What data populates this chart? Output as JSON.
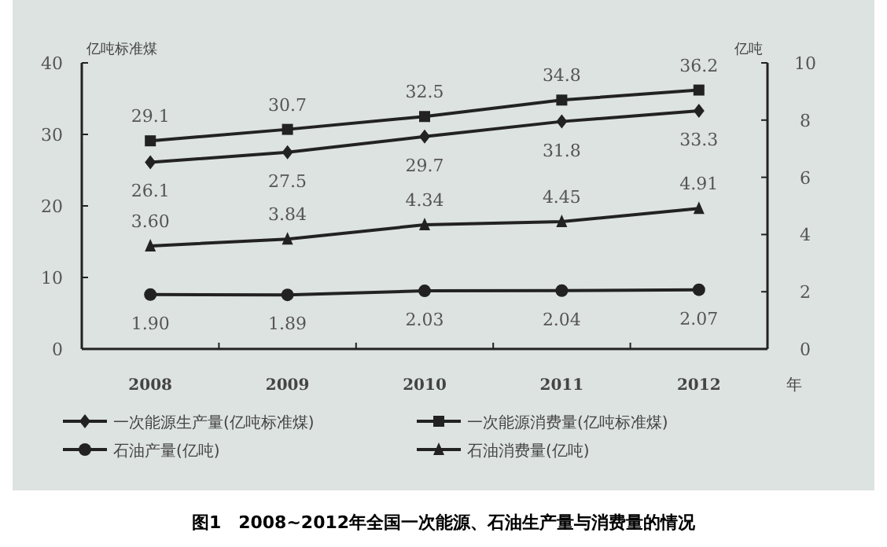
{
  "chart_data": {
    "type": "line",
    "categories": [
      "2008",
      "2009",
      "2010",
      "2011",
      "2012"
    ],
    "xlabel": "年",
    "ylabel": "亿吨标准煤",
    "y2label": "亿吨",
    "ylim": [
      0,
      40
    ],
    "yticks": [
      0,
      10,
      20,
      30,
      40
    ],
    "y2lim": [
      0,
      10
    ],
    "y2ticks": [
      0,
      2,
      4,
      6,
      8,
      10
    ],
    "series": [
      {
        "name": "一次能源生产量(亿吨标准煤)",
        "color": "#222222",
        "marker": "diamond",
        "values": [
          26.1,
          27.5,
          29.7,
          31.8,
          33.3
        ]
      },
      {
        "name": "一次能源消费量(亿吨标准煤)",
        "color": "#222222",
        "marker": "square",
        "values": [
          29.1,
          30.7,
          32.5,
          34.8,
          36.2
        ]
      },
      {
        "name": "石油产量(亿吨)",
        "color": "#222222",
        "marker": "circle",
        "axis": "y2",
        "values": [
          1.9,
          1.89,
          2.03,
          2.04,
          2.07
        ],
        "value_labels": [
          "1.90",
          "1.89",
          "2.03",
          "2.04",
          "2.07"
        ]
      },
      {
        "name": "石油消费量(亿吨)",
        "color": "#222222",
        "marker": "triangle",
        "axis": "y2",
        "values": [
          3.6,
          3.84,
          4.34,
          4.45,
          4.91
        ],
        "value_labels": [
          "3.60",
          "3.84",
          "4.34",
          "4.45",
          "4.91"
        ]
      }
    ],
    "data_labels": true,
    "legend": "bottom",
    "grid": false,
    "annotations": [
      "图1　2008~2012年全国一次能源、石油生产量与消费量的情况"
    ]
  }
}
